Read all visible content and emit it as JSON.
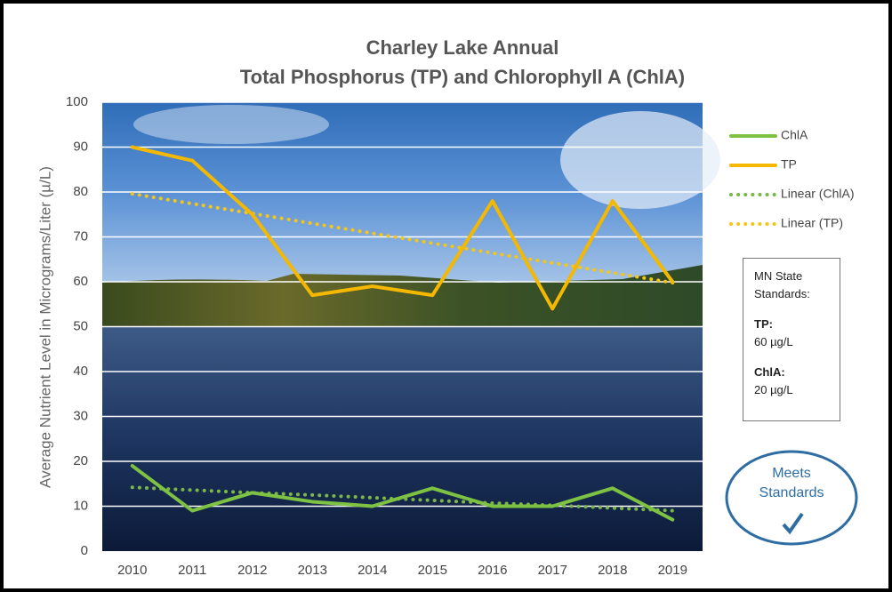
{
  "chart_data": {
    "type": "line",
    "title": "Charley Lake Annual",
    "subtitle": "Total Phosphorus (TP) and Chlorophyll A (ChlA)",
    "y_label": "Average Nutrient Level in Micrograms/Liter (µ/L)",
    "categories": [
      "2010",
      "2011",
      "2012",
      "2013",
      "2014",
      "2015",
      "2016",
      "2017",
      "2018",
      "2019"
    ],
    "series": [
      {
        "name": "ChlA",
        "color": "#7dc242",
        "style": "solid",
        "values": [
          19,
          9,
          13,
          11,
          10,
          14,
          10,
          10,
          14,
          7
        ]
      },
      {
        "name": "TP",
        "color": "#f5b800",
        "style": "solid",
        "values": [
          90,
          87,
          75,
          57,
          59,
          57,
          78,
          54,
          78,
          60
        ]
      },
      {
        "name": "Linear (ChlA)",
        "color": "#7ab648",
        "style": "dotted",
        "values": [
          14.2,
          13.6,
          13.0,
          12.5,
          11.9,
          11.3,
          10.7,
          10.2,
          9.6,
          9.0
        ]
      },
      {
        "name": "Linear (TP)",
        "color": "#f5c518",
        "style": "dotted",
        "values": [
          79.6,
          77.4,
          75.2,
          73.0,
          70.8,
          68.6,
          66.4,
          64.2,
          62.0,
          59.8
        ]
      }
    ],
    "ylim": [
      0,
      100
    ],
    "yticks": [
      0,
      10,
      20,
      30,
      40,
      50,
      60,
      70,
      80,
      90,
      100
    ],
    "grid": true,
    "legend": "right",
    "standards": {
      "heading": "MN State Standards:",
      "items": [
        {
          "label": "TP:",
          "text": "60 µg/L"
        },
        {
          "label": "ChlA:",
          "text": "20 µg/L"
        }
      ]
    },
    "badge": "Meets Standards"
  }
}
